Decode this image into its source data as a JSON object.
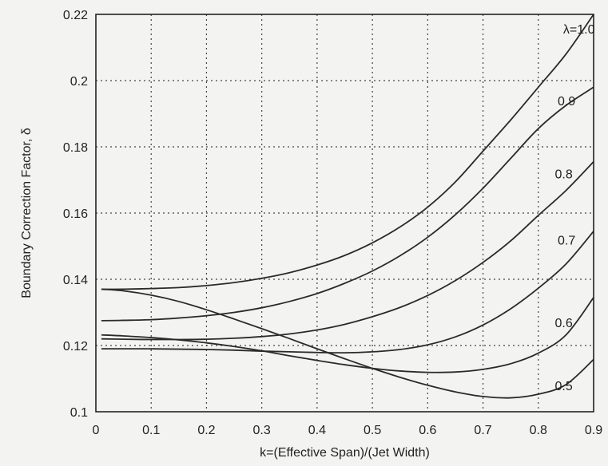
{
  "chart_data": {
    "type": "line",
    "title": "",
    "xlabel": "k=(Effective Span)/(Jet Width)",
    "ylabel": "Boundary Correction Factor, δ",
    "xlim": [
      0,
      0.9
    ],
    "ylim": [
      0.1,
      0.22
    ],
    "grid": true,
    "x_ticks": [
      "0",
      "0.1",
      "0.2",
      "0.3",
      "0.4",
      "0.5",
      "0.6",
      "0.7",
      "0.8",
      "0.9"
    ],
    "y_ticks": [
      "0.1",
      "0.12",
      "0.14",
      "0.16",
      "0.18",
      "0.2",
      "0.22"
    ],
    "x": [
      0.01,
      0.05,
      0.1,
      0.15,
      0.2,
      0.25,
      0.3,
      0.35,
      0.4,
      0.45,
      0.5,
      0.55,
      0.6,
      0.65,
      0.7,
      0.75,
      0.8,
      0.85,
      0.9
    ],
    "series": [
      {
        "name": "λ=1.0",
        "values": [
          0.137,
          0.137,
          0.1372,
          0.1375,
          0.1381,
          0.139,
          0.1403,
          0.142,
          0.1443,
          0.1472,
          0.151,
          0.1558,
          0.1618,
          0.1694,
          0.1787,
          0.1881,
          0.198,
          0.208,
          0.22
        ]
      },
      {
        "name": "0.9",
        "values": [
          0.1275,
          0.1276,
          0.1278,
          0.1283,
          0.129,
          0.13,
          0.1314,
          0.1333,
          0.1357,
          0.1388,
          0.1425,
          0.1471,
          0.1527,
          0.1595,
          0.1675,
          0.1765,
          0.1855,
          0.1925,
          0.198
        ]
      },
      {
        "name": "0.8",
        "values": [
          0.122,
          0.1219,
          0.1218,
          0.1218,
          0.1219,
          0.1222,
          0.1227,
          0.1235,
          0.1247,
          0.1264,
          0.1287,
          0.1315,
          0.1351,
          0.1396,
          0.1451,
          0.1516,
          0.1593,
          0.1668,
          0.1755
        ]
      },
      {
        "name": "0.7",
        "values": [
          0.119,
          0.119,
          0.119,
          0.1189,
          0.1188,
          0.1186,
          0.1183,
          0.1181,
          0.1179,
          0.1178,
          0.1181,
          0.1188,
          0.1202,
          0.1226,
          0.1262,
          0.1311,
          0.1373,
          0.1446,
          0.1545
        ]
      },
      {
        "name": "0.6",
        "values": [
          0.1232,
          0.1229,
          0.1224,
          0.1217,
          0.1208,
          0.1197,
          0.1184,
          0.1169,
          0.1155,
          0.1142,
          0.1131,
          0.1123,
          0.1119,
          0.112,
          0.1128,
          0.1145,
          0.1177,
          0.1232,
          0.1345
        ]
      },
      {
        "name": "0.5",
        "values": [
          0.137,
          0.1365,
          0.1352,
          0.1333,
          0.1308,
          0.128,
          0.1251,
          0.1221,
          0.119,
          0.116,
          0.1131,
          0.1104,
          0.108,
          0.106,
          0.1046,
          0.1042,
          0.1053,
          0.1082,
          0.1158
        ]
      }
    ]
  }
}
